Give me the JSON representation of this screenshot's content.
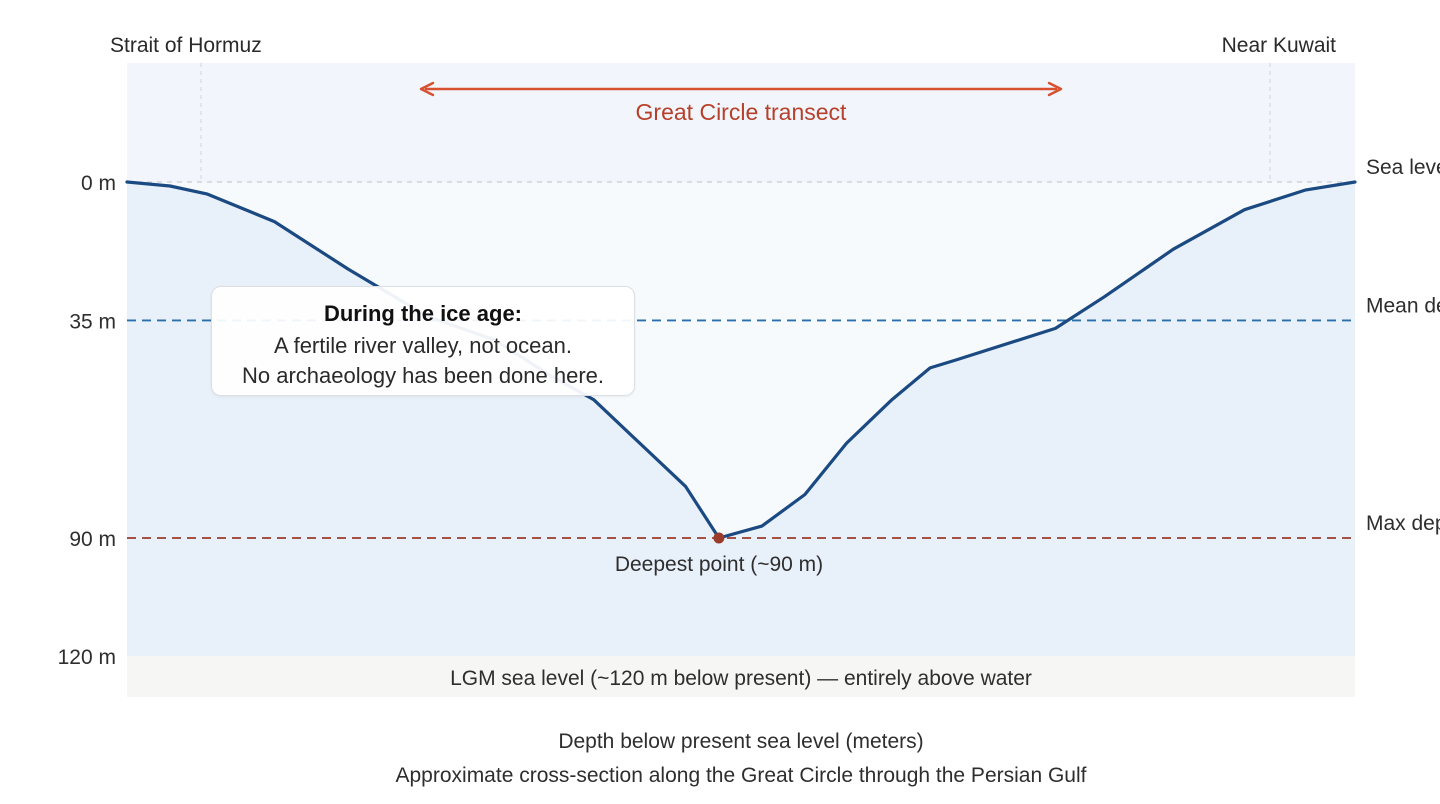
{
  "chart_data": {
    "type": "area",
    "title": "",
    "xlabel": "Approximate cross-section along the Great Circle through the Persian Gulf",
    "ylabel": "Depth below present sea level (meters)",
    "endpoints": {
      "left": "Strait of Hormuz",
      "right": "Near Kuwait"
    },
    "transect_label": "Great Circle transect",
    "ylim": [
      0,
      120
    ],
    "y_ticks": [
      {
        "value": 0,
        "label": "0 m"
      },
      {
        "value": 35,
        "label": "35 m"
      },
      {
        "value": 90,
        "label": "90 m"
      },
      {
        "value": 120,
        "label": "120 m"
      }
    ],
    "reference_lines": [
      {
        "value": 0,
        "label": "Sea level",
        "style": "dashed",
        "color": "#c9ced6"
      },
      {
        "value": 35,
        "label": "Mean depth",
        "style": "dashed",
        "color": "#2a6fab"
      },
      {
        "value": 90,
        "label": "Max depth",
        "style": "dashed",
        "color": "#9a3b2c"
      }
    ],
    "series": [
      {
        "values": [
          [
            0,
            0
          ],
          [
            3.5,
            1
          ],
          [
            6.5,
            3
          ],
          [
            12,
            10
          ],
          [
            18,
            22
          ],
          [
            24.5,
            34
          ],
          [
            30,
            40
          ],
          [
            34.5,
            49
          ],
          [
            38,
            55
          ],
          [
            45.5,
            77
          ],
          [
            48.2,
            90
          ],
          [
            51.7,
            87
          ],
          [
            55.2,
            79
          ],
          [
            58.6,
            66
          ],
          [
            62.3,
            55
          ],
          [
            65.4,
            47
          ],
          [
            67.5,
            45
          ],
          [
            75.6,
            37
          ],
          [
            79.6,
            29
          ],
          [
            85.2,
            17
          ],
          [
            91,
            7
          ],
          [
            96,
            2
          ],
          [
            100,
            0
          ]
        ]
      }
    ],
    "deepest_point": {
      "x": 48.2,
      "depth": 90,
      "label": "Deepest point (~90 m)"
    },
    "lgm_band": {
      "label": "LGM sea level (~120 m below present) — entirely above water"
    },
    "callout": {
      "heading": "During the ice age:",
      "line1": "A fertile river valley, not ocean.",
      "line2": "No archaeology has been done here."
    },
    "colors": {
      "profile": "#1b4a82",
      "transect_arrow": "#d7502f",
      "transect_text": "#b6402a",
      "deepest_marker": "#9a3b2c",
      "plot_bg": "#f2f6fc",
      "fill": "#e8f0fa",
      "lgm_band": "#f6f6f4"
    }
  }
}
